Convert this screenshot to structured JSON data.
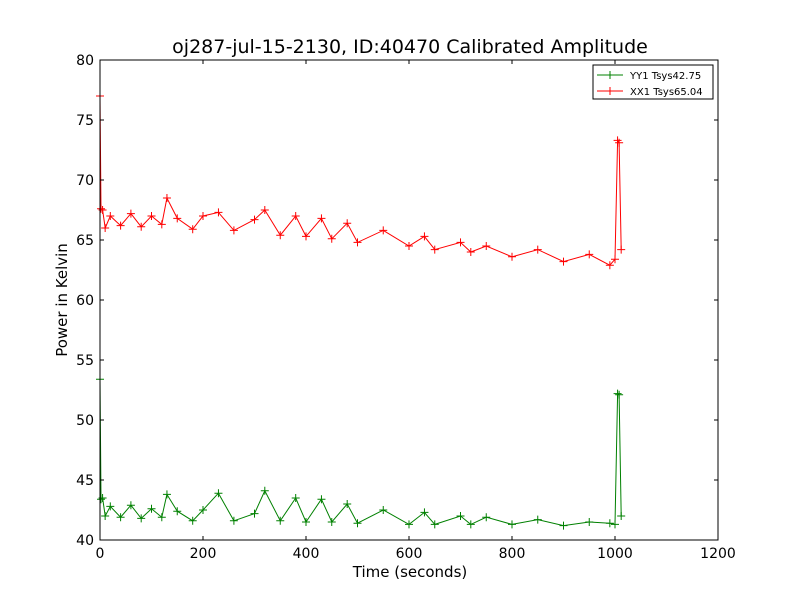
{
  "chart_data": {
    "type": "line",
    "title": "oj287-jul-15-2130, ID:40470 Calibrated Amplitude",
    "xlabel": "Time (seconds)",
    "ylabel": "Power in Kelvin",
    "xlim": [
      0,
      1200
    ],
    "ylim": [
      40,
      80
    ],
    "xticks": [
      0,
      200,
      400,
      600,
      800,
      1000,
      1200
    ],
    "yticks": [
      40,
      45,
      50,
      55,
      60,
      65,
      70,
      75,
      80
    ],
    "grid": false,
    "legend_position": "upper right",
    "marker": "+",
    "series": [
      {
        "name": "YY1 Tsys42.75",
        "color": "#008000",
        "points": [
          [
            0,
            53.4
          ],
          [
            2,
            43.4
          ],
          [
            5,
            43.5
          ],
          [
            10,
            42.0
          ],
          [
            20,
            42.8
          ],
          [
            40,
            41.9
          ],
          [
            60,
            42.9
          ],
          [
            80,
            41.8
          ],
          [
            100,
            42.6
          ],
          [
            120,
            41.9
          ],
          [
            130,
            43.8
          ],
          [
            150,
            42.4
          ],
          [
            180,
            41.6
          ],
          [
            200,
            42.5
          ],
          [
            230,
            43.9
          ],
          [
            260,
            41.6
          ],
          [
            300,
            42.2
          ],
          [
            320,
            44.1
          ],
          [
            350,
            41.6
          ],
          [
            380,
            43.5
          ],
          [
            400,
            41.5
          ],
          [
            430,
            43.4
          ],
          [
            450,
            41.5
          ],
          [
            480,
            43.0
          ],
          [
            500,
            41.4
          ],
          [
            550,
            42.5
          ],
          [
            600,
            41.3
          ],
          [
            630,
            42.3
          ],
          [
            650,
            41.3
          ],
          [
            700,
            42.0
          ],
          [
            720,
            41.3
          ],
          [
            750,
            41.9
          ],
          [
            800,
            41.3
          ],
          [
            850,
            41.7
          ],
          [
            900,
            41.2
          ],
          [
            950,
            41.5
          ],
          [
            990,
            41.4
          ],
          [
            1000,
            41.3
          ],
          [
            1005,
            52.2
          ],
          [
            1008,
            52.1
          ],
          [
            1012,
            42.0
          ]
        ]
      },
      {
        "name": "XX1 Tsys65.04",
        "color": "#ff0000",
        "points": [
          [
            0,
            77.0
          ],
          [
            2,
            67.6
          ],
          [
            5,
            67.5
          ],
          [
            10,
            66.0
          ],
          [
            20,
            67.0
          ],
          [
            40,
            66.2
          ],
          [
            60,
            67.2
          ],
          [
            80,
            66.1
          ],
          [
            100,
            67.0
          ],
          [
            120,
            66.3
          ],
          [
            130,
            68.5
          ],
          [
            150,
            66.8
          ],
          [
            180,
            65.9
          ],
          [
            200,
            67.0
          ],
          [
            230,
            67.3
          ],
          [
            260,
            65.8
          ],
          [
            300,
            66.7
          ],
          [
            320,
            67.5
          ],
          [
            350,
            65.4
          ],
          [
            380,
            67.0
          ],
          [
            400,
            65.3
          ],
          [
            430,
            66.8
          ],
          [
            450,
            65.1
          ],
          [
            480,
            66.4
          ],
          [
            500,
            64.8
          ],
          [
            550,
            65.8
          ],
          [
            600,
            64.5
          ],
          [
            630,
            65.3
          ],
          [
            650,
            64.2
          ],
          [
            700,
            64.8
          ],
          [
            720,
            64.0
          ],
          [
            750,
            64.5
          ],
          [
            800,
            63.6
          ],
          [
            850,
            64.2
          ],
          [
            900,
            63.2
          ],
          [
            950,
            63.8
          ],
          [
            990,
            62.9
          ],
          [
            1000,
            63.4
          ],
          [
            1005,
            73.3
          ],
          [
            1008,
            73.1
          ],
          [
            1012,
            64.2
          ]
        ]
      }
    ]
  }
}
